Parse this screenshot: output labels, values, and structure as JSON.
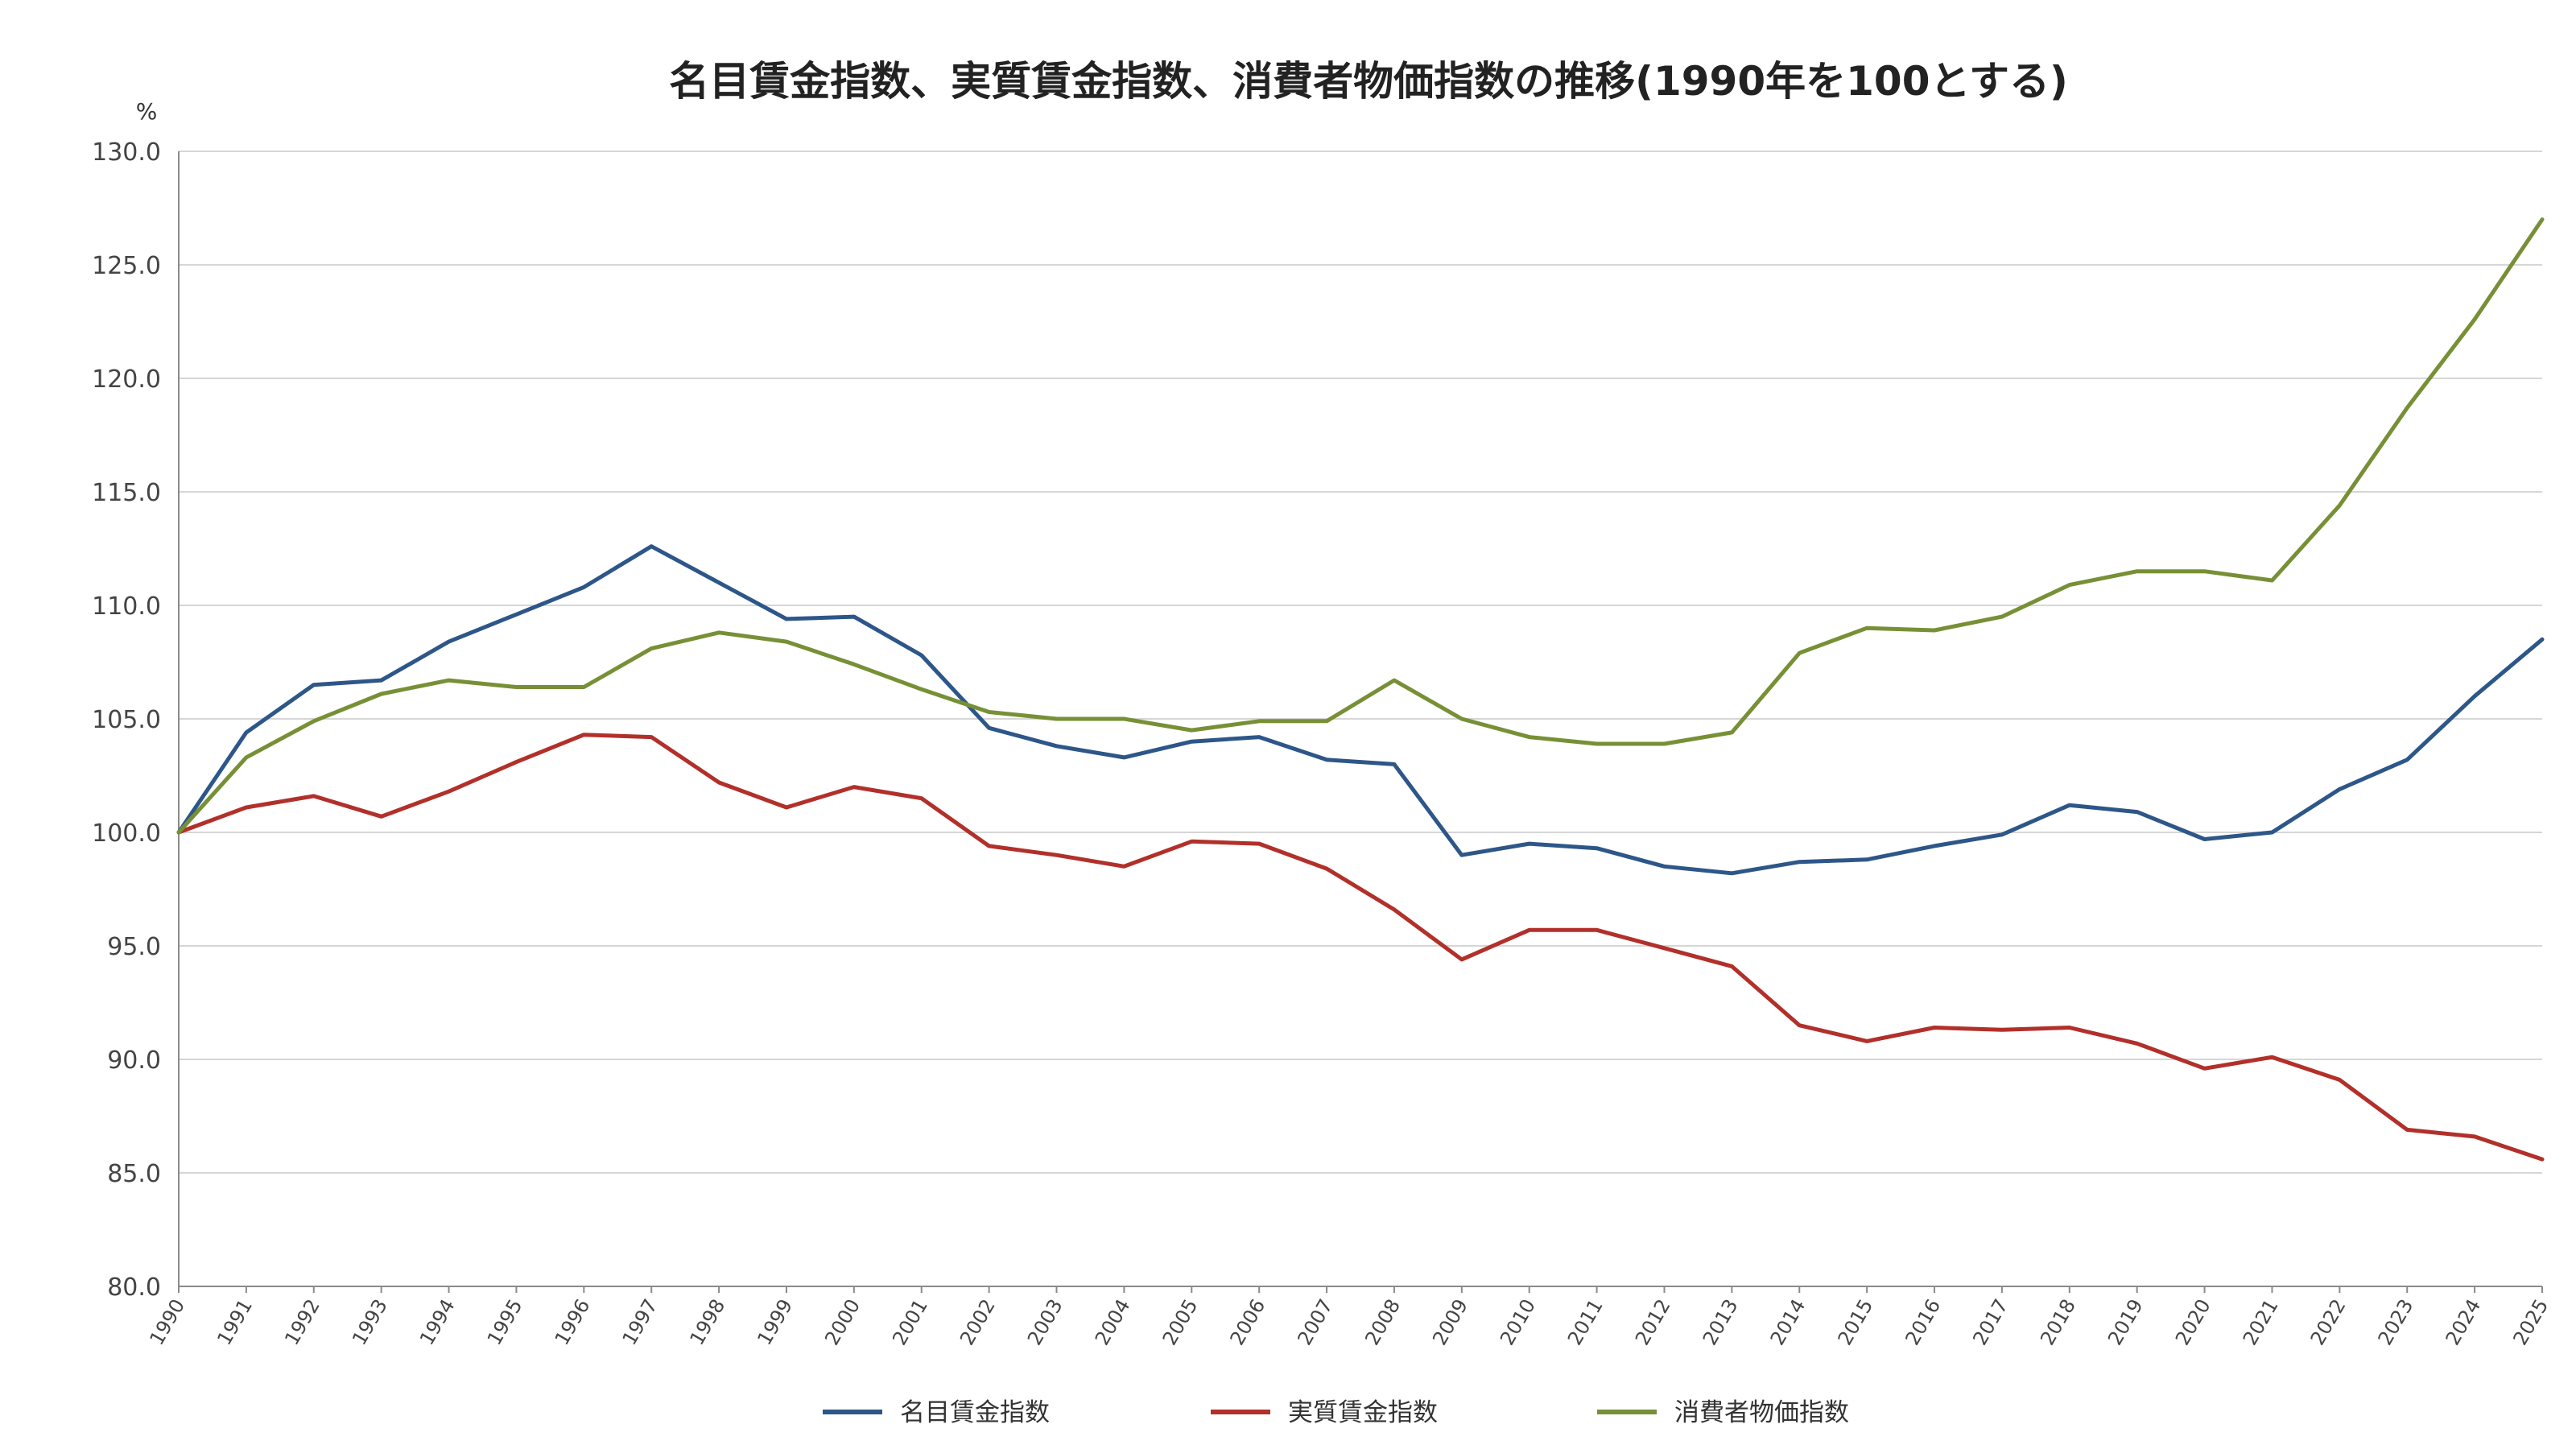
{
  "chart_data": {
    "type": "line",
    "title": "名目賃金指数、実質賃金指数、消費者物価指数の推移(1990年を100とする)",
    "ylabel": "%",
    "xlabel": "",
    "ylim": [
      80,
      130
    ],
    "ytick_step": 5,
    "ytick_labels": [
      "80.0",
      "85.0",
      "90.0",
      "95.0",
      "100.0",
      "105.0",
      "110.0",
      "115.0",
      "120.0",
      "125.0",
      "130.0"
    ],
    "grid": true,
    "legend_position": "bottom",
    "categories": [
      "1990",
      "1991",
      "1992",
      "1993",
      "1994",
      "1995",
      "1996",
      "1997",
      "1998",
      "1999",
      "2000",
      "2001",
      "2002",
      "2003",
      "2004",
      "2005",
      "2006",
      "2007",
      "2008",
      "2009",
      "2010",
      "2011",
      "2012",
      "2013",
      "2014",
      "2015",
      "2016",
      "2017",
      "2018",
      "2019",
      "2020",
      "2021",
      "2022",
      "2023",
      "2024",
      "2025"
    ],
    "series": [
      {
        "name": "名目賃金指数",
        "color": "#2d5689",
        "values": [
          100.0,
          104.4,
          106.5,
          106.7,
          108.4,
          109.6,
          110.8,
          112.6,
          111.0,
          109.4,
          109.5,
          107.8,
          104.6,
          103.8,
          103.3,
          104.0,
          104.2,
          103.2,
          103.0,
          99.0,
          99.5,
          99.3,
          98.5,
          98.2,
          98.7,
          98.8,
          99.4,
          99.9,
          101.2,
          100.9,
          99.7,
          100.0,
          101.9,
          103.2,
          106.0,
          108.5
        ]
      },
      {
        "name": "実質賃金指数",
        "color": "#b2302a",
        "values": [
          100.0,
          101.1,
          101.6,
          100.7,
          101.8,
          103.1,
          104.3,
          104.2,
          102.2,
          101.1,
          102.0,
          101.5,
          99.4,
          99.0,
          98.5,
          99.6,
          99.5,
          98.4,
          96.6,
          94.4,
          95.7,
          95.7,
          94.9,
          94.1,
          91.5,
          90.8,
          91.4,
          91.3,
          91.4,
          90.7,
          89.6,
          90.1,
          89.1,
          86.9,
          86.6,
          85.6
        ]
      },
      {
        "name": "消費者物価指数",
        "color": "#779036",
        "values": [
          100.0,
          103.3,
          104.9,
          106.1,
          106.7,
          106.4,
          106.4,
          108.1,
          108.8,
          108.4,
          107.4,
          106.3,
          105.3,
          105.0,
          105.0,
          104.5,
          104.9,
          104.9,
          106.7,
          105.0,
          104.2,
          103.9,
          103.9,
          104.4,
          107.9,
          109.0,
          108.9,
          109.5,
          110.9,
          111.5,
          111.5,
          111.1,
          114.4,
          118.7,
          122.6,
          127.0
        ]
      }
    ]
  }
}
